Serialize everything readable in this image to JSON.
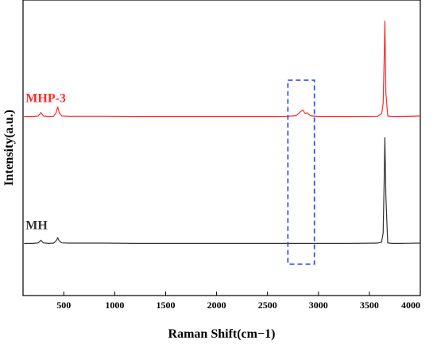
{
  "chart_data": {
    "type": "line",
    "xlabel": "Raman Shift(cm−1)",
    "ylabel": "Intensity(a.u.)",
    "xlim": [
      100,
      4000
    ],
    "ylim": [
      0,
      1
    ],
    "xticks": [
      500,
      1000,
      1500,
      2000,
      2500,
      3000,
      3500,
      4000
    ],
    "yticks": [],
    "grid": false,
    "legend": "none",
    "highlight_box": {
      "x_range": [
        2700,
        2960
      ],
      "y_range": [
        0.06,
        0.77
      ],
      "color": "#1f44ff",
      "style": "dashed"
    },
    "series": [
      {
        "name": "MHP-3",
        "color": "#ff2a2a",
        "baseline": 0.63,
        "x": [
          110,
          200,
          250,
          275,
          300,
          350,
          400,
          425,
          440,
          455,
          480,
          550,
          700,
          900,
          1200,
          1500,
          1800,
          2100,
          2400,
          2600,
          2700,
          2780,
          2820,
          2845,
          2870,
          2890,
          2920,
          3000,
          3300,
          3580,
          3620,
          3635,
          3645,
          3652,
          3662,
          3680,
          3720,
          3800,
          4000
        ],
        "values": [
          0.63,
          0.63,
          0.632,
          0.645,
          0.632,
          0.63,
          0.631,
          0.645,
          0.668,
          0.645,
          0.632,
          0.631,
          0.631,
          0.631,
          0.63,
          0.63,
          0.63,
          0.63,
          0.63,
          0.63,
          0.631,
          0.633,
          0.647,
          0.655,
          0.642,
          0.644,
          0.633,
          0.63,
          0.63,
          0.631,
          0.64,
          0.68,
          0.85,
          1.0,
          0.72,
          0.632,
          0.63,
          0.63,
          0.632
        ]
      },
      {
        "name": "MH",
        "color": "#333333",
        "baseline": 0.14,
        "x": [
          110,
          200,
          250,
          275,
          300,
          350,
          400,
          425,
          440,
          455,
          480,
          550,
          700,
          900,
          1200,
          1500,
          1800,
          2100,
          2400,
          2600,
          2800,
          3000,
          3300,
          3580,
          3620,
          3635,
          3645,
          3652,
          3662,
          3680,
          3720,
          3800,
          4000
        ],
        "values": [
          0.14,
          0.14,
          0.142,
          0.152,
          0.142,
          0.14,
          0.141,
          0.15,
          0.162,
          0.15,
          0.142,
          0.141,
          0.141,
          0.141,
          0.14,
          0.14,
          0.14,
          0.14,
          0.14,
          0.14,
          0.14,
          0.14,
          0.14,
          0.141,
          0.145,
          0.18,
          0.38,
          0.55,
          0.32,
          0.142,
          0.14,
          0.14,
          0.141
        ]
      }
    ]
  }
}
